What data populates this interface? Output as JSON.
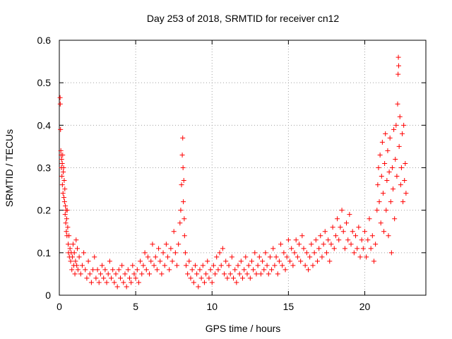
{
  "chart_data": {
    "type": "scatter",
    "title": "Day 253 of 2018, SRMTID for receiver cn12",
    "xlabel": "GPS time / hours",
    "ylabel": "SRMTID / TECUs",
    "xlim": [
      0,
      24
    ],
    "ylim": [
      0,
      0.6
    ],
    "xticks": [
      0,
      5,
      10,
      15,
      20
    ],
    "yticks": [
      0,
      0.1,
      0.2,
      0.3,
      0.4,
      0.5,
      0.6
    ],
    "xtick_labels": [
      "0",
      "5",
      "10",
      "15",
      "20"
    ],
    "ytick_labels": [
      "0",
      "0.1",
      "0.2",
      "0.3",
      "0.4",
      "0.5",
      "0.6"
    ],
    "grid": true,
    "marker": "plus",
    "series": [
      {
        "name": "cn12",
        "color": "#ff0000",
        "points": [
          [
            0.05,
            0.465
          ],
          [
            0.06,
            0.45
          ],
          [
            0.08,
            0.39
          ],
          [
            0.1,
            0.34
          ],
          [
            0.12,
            0.33
          ],
          [
            0.14,
            0.3
          ],
          [
            0.15,
            0.32
          ],
          [
            0.17,
            0.28
          ],
          [
            0.19,
            0.31
          ],
          [
            0.2,
            0.26
          ],
          [
            0.22,
            0.33
          ],
          [
            0.24,
            0.24
          ],
          [
            0.26,
            0.29
          ],
          [
            0.28,
            0.3
          ],
          [
            0.3,
            0.23
          ],
          [
            0.32,
            0.27
          ],
          [
            0.34,
            0.22
          ],
          [
            0.36,
            0.25
          ],
          [
            0.38,
            0.19
          ],
          [
            0.4,
            0.21
          ],
          [
            0.42,
            0.17
          ],
          [
            0.44,
            0.2
          ],
          [
            0.46,
            0.15
          ],
          [
            0.48,
            0.18
          ],
          [
            0.5,
            0.14
          ],
          [
            0.52,
            0.2
          ],
          [
            0.55,
            0.16
          ],
          [
            0.58,
            0.12
          ],
          [
            0.6,
            0.1
          ],
          [
            0.63,
            0.14
          ],
          [
            0.66,
            0.09
          ],
          [
            0.7,
            0.11
          ],
          [
            0.74,
            0.08
          ],
          [
            0.78,
            0.1
          ],
          [
            0.82,
            0.06
          ],
          [
            0.86,
            0.09
          ],
          [
            0.9,
            0.12
          ],
          [
            0.94,
            0.07
          ],
          [
            0.98,
            0.1
          ],
          [
            1.02,
            0.05
          ],
          [
            1.06,
            0.08
          ],
          [
            1.1,
            0.13
          ],
          [
            1.14,
            0.07
          ],
          [
            1.18,
            0.11
          ],
          [
            1.22,
            0.06
          ],
          [
            1.3,
            0.09
          ],
          [
            1.4,
            0.05
          ],
          [
            1.5,
            0.07
          ],
          [
            1.6,
            0.1
          ],
          [
            1.7,
            0.06
          ],
          [
            1.8,
            0.04
          ],
          [
            1.9,
            0.08
          ],
          [
            2.0,
            0.05
          ],
          [
            2.1,
            0.03
          ],
          [
            2.2,
            0.06
          ],
          [
            2.3,
            0.09
          ],
          [
            2.4,
            0.04
          ],
          [
            2.5,
            0.06
          ],
          [
            2.6,
            0.03
          ],
          [
            2.7,
            0.05
          ],
          [
            2.8,
            0.07
          ],
          [
            2.9,
            0.04
          ],
          [
            3.0,
            0.06
          ],
          [
            3.1,
            0.03
          ],
          [
            3.2,
            0.05
          ],
          [
            3.3,
            0.08
          ],
          [
            3.4,
            0.04
          ],
          [
            3.5,
            0.06
          ],
          [
            3.6,
            0.03
          ],
          [
            3.7,
            0.05
          ],
          [
            3.8,
            0.02
          ],
          [
            3.9,
            0.06
          ],
          [
            4.0,
            0.04
          ],
          [
            4.1,
            0.07
          ],
          [
            4.2,
            0.03
          ],
          [
            4.3,
            0.05
          ],
          [
            4.4,
            0.02
          ],
          [
            4.5,
            0.06
          ],
          [
            4.6,
            0.04
          ],
          [
            4.7,
            0.03
          ],
          [
            4.8,
            0.07
          ],
          [
            4.9,
            0.05
          ],
          [
            5.0,
            0.04
          ],
          [
            5.1,
            0.06
          ],
          [
            5.2,
            0.03
          ],
          [
            5.3,
            0.08
          ],
          [
            5.4,
            0.05
          ],
          [
            5.5,
            0.07
          ],
          [
            5.6,
            0.1
          ],
          [
            5.7,
            0.06
          ],
          [
            5.8,
            0.09
          ],
          [
            5.9,
            0.05
          ],
          [
            6.0,
            0.08
          ],
          [
            6.1,
            0.12
          ],
          [
            6.2,
            0.07
          ],
          [
            6.3,
            0.09
          ],
          [
            6.4,
            0.06
          ],
          [
            6.5,
            0.11
          ],
          [
            6.6,
            0.08
          ],
          [
            6.7,
            0.05
          ],
          [
            6.8,
            0.1
          ],
          [
            6.9,
            0.07
          ],
          [
            7.0,
            0.12
          ],
          [
            7.1,
            0.09
          ],
          [
            7.2,
            0.06
          ],
          [
            7.3,
            0.11
          ],
          [
            7.4,
            0.08
          ],
          [
            7.5,
            0.15
          ],
          [
            7.6,
            0.1
          ],
          [
            7.7,
            0.07
          ],
          [
            7.8,
            0.12
          ],
          [
            7.9,
            0.17
          ],
          [
            7.95,
            0.2
          ],
          [
            8.0,
            0.26
          ],
          [
            8.05,
            0.33
          ],
          [
            8.08,
            0.37
          ],
          [
            8.1,
            0.3
          ],
          [
            8.12,
            0.22
          ],
          [
            8.15,
            0.27
          ],
          [
            8.18,
            0.18
          ],
          [
            8.2,
            0.14
          ],
          [
            8.25,
            0.1
          ],
          [
            8.3,
            0.07
          ],
          [
            8.4,
            0.05
          ],
          [
            8.5,
            0.08
          ],
          [
            8.6,
            0.04
          ],
          [
            8.7,
            0.06
          ],
          [
            8.8,
            0.03
          ],
          [
            8.9,
            0.07
          ],
          [
            9.0,
            0.05
          ],
          [
            9.1,
            0.02
          ],
          [
            9.2,
            0.06
          ],
          [
            9.3,
            0.04
          ],
          [
            9.4,
            0.07
          ],
          [
            9.5,
            0.03
          ],
          [
            9.6,
            0.05
          ],
          [
            9.7,
            0.08
          ],
          [
            9.8,
            0.04
          ],
          [
            9.9,
            0.06
          ],
          [
            10.0,
            0.03
          ],
          [
            10.1,
            0.07
          ],
          [
            10.2,
            0.05
          ],
          [
            10.3,
            0.09
          ],
          [
            10.4,
            0.06
          ],
          [
            10.5,
            0.1
          ],
          [
            10.6,
            0.07
          ],
          [
            10.7,
            0.11
          ],
          [
            10.8,
            0.05
          ],
          [
            10.9,
            0.08
          ],
          [
            11.0,
            0.04
          ],
          [
            11.1,
            0.07
          ],
          [
            11.2,
            0.05
          ],
          [
            11.3,
            0.09
          ],
          [
            11.4,
            0.04
          ],
          [
            11.5,
            0.06
          ],
          [
            11.6,
            0.03
          ],
          [
            11.7,
            0.07
          ],
          [
            11.8,
            0.05
          ],
          [
            11.9,
            0.08
          ],
          [
            12.0,
            0.04
          ],
          [
            12.1,
            0.06
          ],
          [
            12.2,
            0.09
          ],
          [
            12.3,
            0.05
          ],
          [
            12.4,
            0.07
          ],
          [
            12.5,
            0.04
          ],
          [
            12.6,
            0.08
          ],
          [
            12.7,
            0.06
          ],
          [
            12.8,
            0.1
          ],
          [
            12.9,
            0.05
          ],
          [
            13.0,
            0.07
          ],
          [
            13.1,
            0.09
          ],
          [
            13.2,
            0.05
          ],
          [
            13.3,
            0.08
          ],
          [
            13.4,
            0.06
          ],
          [
            13.5,
            0.1
          ],
          [
            13.6,
            0.07
          ],
          [
            13.7,
            0.05
          ],
          [
            13.8,
            0.09
          ],
          [
            13.9,
            0.06
          ],
          [
            14.0,
            0.11
          ],
          [
            14.1,
            0.07
          ],
          [
            14.2,
            0.09
          ],
          [
            14.3,
            0.05
          ],
          [
            14.4,
            0.08
          ],
          [
            14.5,
            0.12
          ],
          [
            14.6,
            0.07
          ],
          [
            14.7,
            0.1
          ],
          [
            14.8,
            0.06
          ],
          [
            14.9,
            0.09
          ],
          [
            15.0,
            0.13
          ],
          [
            15.1,
            0.08
          ],
          [
            15.2,
            0.11
          ],
          [
            15.3,
            0.07
          ],
          [
            15.4,
            0.1
          ],
          [
            15.5,
            0.13
          ],
          [
            15.6,
            0.09
          ],
          [
            15.7,
            0.12
          ],
          [
            15.8,
            0.08
          ],
          [
            15.9,
            0.14
          ],
          [
            16.0,
            0.11
          ],
          [
            16.1,
            0.07
          ],
          [
            16.2,
            0.1
          ],
          [
            16.3,
            0.06
          ],
          [
            16.4,
            0.09
          ],
          [
            16.5,
            0.12
          ],
          [
            16.6,
            0.07
          ],
          [
            16.7,
            0.1
          ],
          [
            16.8,
            0.13
          ],
          [
            16.9,
            0.08
          ],
          [
            17.0,
            0.11
          ],
          [
            17.1,
            0.14
          ],
          [
            17.2,
            0.09
          ],
          [
            17.3,
            0.12
          ],
          [
            17.4,
            0.15
          ],
          [
            17.5,
            0.1
          ],
          [
            17.6,
            0.13
          ],
          [
            17.7,
            0.08
          ],
          [
            17.8,
            0.12
          ],
          [
            17.9,
            0.16
          ],
          [
            18.0,
            0.11
          ],
          [
            18.1,
            0.14
          ],
          [
            18.2,
            0.18
          ],
          [
            18.3,
            0.13
          ],
          [
            18.4,
            0.16
          ],
          [
            18.5,
            0.2
          ],
          [
            18.6,
            0.15
          ],
          [
            18.7,
            0.11
          ],
          [
            18.8,
            0.17
          ],
          [
            18.9,
            0.13
          ],
          [
            19.0,
            0.19
          ],
          [
            19.1,
            0.12
          ],
          [
            19.2,
            0.15
          ],
          [
            19.3,
            0.1
          ],
          [
            19.4,
            0.14
          ],
          [
            19.5,
            0.11
          ],
          [
            19.6,
            0.16
          ],
          [
            19.7,
            0.09
          ],
          [
            19.8,
            0.13
          ],
          [
            19.9,
            0.11
          ],
          [
            20.0,
            0.15
          ],
          [
            20.1,
            0.09
          ],
          [
            20.2,
            0.13
          ],
          [
            20.3,
            0.18
          ],
          [
            20.4,
            0.11
          ],
          [
            20.5,
            0.14
          ],
          [
            20.6,
            0.08
          ],
          [
            20.7,
            0.12
          ],
          [
            20.8,
            0.2
          ],
          [
            20.85,
            0.26
          ],
          [
            20.9,
            0.3
          ],
          [
            20.95,
            0.22
          ],
          [
            21.0,
            0.33
          ],
          [
            21.05,
            0.17
          ],
          [
            21.1,
            0.28
          ],
          [
            21.15,
            0.36
          ],
          [
            21.2,
            0.24
          ],
          [
            21.25,
            0.15
          ],
          [
            21.3,
            0.31
          ],
          [
            21.35,
            0.38
          ],
          [
            21.4,
            0.2
          ],
          [
            21.45,
            0.27
          ],
          [
            21.5,
            0.34
          ],
          [
            21.55,
            0.14
          ],
          [
            21.6,
            0.29
          ],
          [
            21.65,
            0.37
          ],
          [
            21.7,
            0.22
          ],
          [
            21.75,
            0.1
          ],
          [
            21.8,
            0.3
          ],
          [
            21.85,
            0.25
          ],
          [
            21.9,
            0.39
          ],
          [
            21.95,
            0.18
          ],
          [
            22.0,
            0.32
          ],
          [
            22.05,
            0.4
          ],
          [
            22.1,
            0.28
          ],
          [
            22.15,
            0.45
          ],
          [
            22.18,
            0.52
          ],
          [
            22.2,
            0.56
          ],
          [
            22.22,
            0.54
          ],
          [
            22.25,
            0.35
          ],
          [
            22.3,
            0.42
          ],
          [
            22.35,
            0.26
          ],
          [
            22.4,
            0.3
          ],
          [
            22.45,
            0.38
          ],
          [
            22.5,
            0.22
          ],
          [
            22.55,
            0.4
          ],
          [
            22.6,
            0.27
          ],
          [
            22.65,
            0.31
          ],
          [
            22.7,
            0.24
          ]
        ]
      }
    ]
  }
}
